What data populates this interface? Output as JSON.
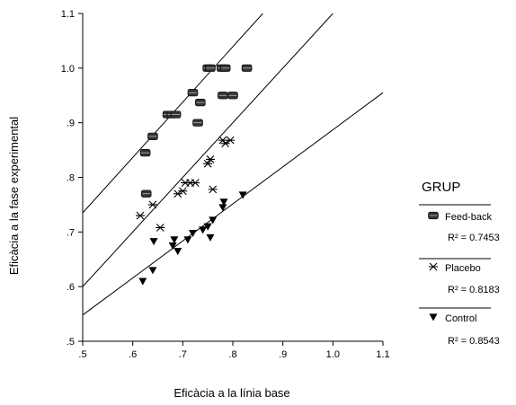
{
  "chart_data": {
    "type": "scatter",
    "xlabel": "Eficàcia a la línia base",
    "ylabel": "Eficàcia a la fase experimental",
    "xlim": [
      0.5,
      1.1
    ],
    "ylim": [
      0.5,
      1.1
    ],
    "x_ticks": [
      0.5,
      0.6,
      0.7,
      0.8,
      0.9,
      1.0,
      1.1
    ],
    "x_tick_labels": [
      ".5",
      ".6",
      ".7",
      ".8",
      ".9",
      "1.0",
      "1.1"
    ],
    "y_ticks": [
      0.5,
      0.6,
      0.7,
      0.8,
      0.9,
      1.0,
      1.1
    ],
    "y_tick_labels": [
      ".5",
      ".6",
      ".7",
      ".8",
      ".9",
      "1.0",
      "1.1"
    ],
    "grid": false,
    "legend": {
      "title": "GRUP",
      "placement": "right",
      "entries": [
        "Feed-back",
        "Placebo",
        "Control"
      ]
    },
    "series": [
      {
        "name": "Feed-back",
        "marker": "filled-circle",
        "r2_label": "R² = 0.7453",
        "fit": {
          "x_start": 0.5,
          "y_start": 0.735,
          "x_end": 0.86,
          "y_end": 1.1
        },
        "points": [
          [
            0.625,
            0.845
          ],
          [
            0.64,
            0.875
          ],
          [
            0.627,
            0.77
          ],
          [
            0.67,
            0.915
          ],
          [
            0.678,
            0.915
          ],
          [
            0.686,
            0.915
          ],
          [
            0.72,
            0.955
          ],
          [
            0.73,
            0.9
          ],
          [
            0.735,
            0.937
          ],
          [
            0.75,
            1.0
          ],
          [
            0.755,
            1.0
          ],
          [
            0.778,
            1.0
          ],
          [
            0.785,
            1.0
          ],
          [
            0.828,
            1.0
          ],
          [
            0.78,
            0.95
          ],
          [
            0.8,
            0.95
          ]
        ]
      },
      {
        "name": "Placebo",
        "marker": "asterisk",
        "r2_label": "R² = 0.8183",
        "fit": {
          "x_start": 0.5,
          "y_start": 0.6,
          "x_end": 1.0,
          "y_end": 1.1
        },
        "points": [
          [
            0.615,
            0.73
          ],
          [
            0.64,
            0.75
          ],
          [
            0.655,
            0.708
          ],
          [
            0.69,
            0.77
          ],
          [
            0.7,
            0.775
          ],
          [
            0.705,
            0.79
          ],
          [
            0.715,
            0.79
          ],
          [
            0.725,
            0.79
          ],
          [
            0.75,
            0.825
          ],
          [
            0.755,
            0.833
          ],
          [
            0.76,
            0.778
          ],
          [
            0.78,
            0.868
          ],
          [
            0.785,
            0.862
          ],
          [
            0.795,
            0.868
          ]
        ]
      },
      {
        "name": "Control",
        "marker": "filled-triangle-down",
        "r2_label": "R² = 0.8543",
        "fit": {
          "x_start": 0.5,
          "y_start": 0.548,
          "x_end": 1.1,
          "y_end": 0.955
        },
        "points": [
          [
            0.62,
            0.61
          ],
          [
            0.64,
            0.63
          ],
          [
            0.642,
            0.683
          ],
          [
            0.68,
            0.675
          ],
          [
            0.683,
            0.686
          ],
          [
            0.69,
            0.665
          ],
          [
            0.71,
            0.686
          ],
          [
            0.72,
            0.698
          ],
          [
            0.74,
            0.704
          ],
          [
            0.75,
            0.71
          ],
          [
            0.755,
            0.69
          ],
          [
            0.76,
            0.722
          ],
          [
            0.78,
            0.745
          ],
          [
            0.782,
            0.755
          ],
          [
            0.82,
            0.768
          ]
        ]
      }
    ]
  }
}
